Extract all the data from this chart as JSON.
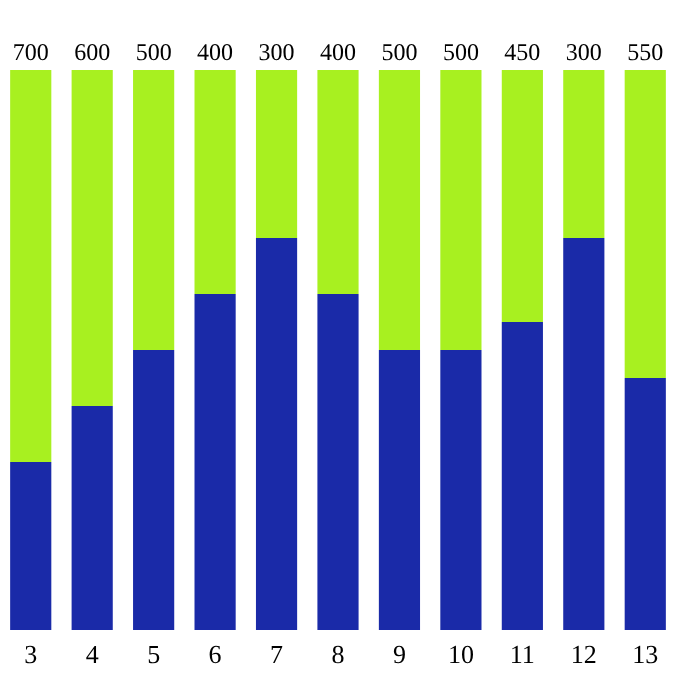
{
  "chart_data": {
    "type": "bar",
    "stacked": true,
    "categories": [
      "3",
      "4",
      "5",
      "6",
      "7",
      "8",
      "9",
      "10",
      "11",
      "12",
      "13"
    ],
    "series": [
      {
        "color": "#1a2aa8",
        "values": [
          300,
          400,
          500,
          600,
          700,
          600,
          500,
          500,
          550,
          700,
          450
        ]
      },
      {
        "color": "#a8f020",
        "values": [
          700,
          600,
          500,
          400,
          300,
          400,
          500,
          500,
          450,
          300,
          550
        ],
        "value_labels": [
          "700",
          "600",
          "500",
          "400",
          "300",
          "400",
          "500",
          "500",
          "450",
          "300",
          "550"
        ]
      }
    ]
  }
}
